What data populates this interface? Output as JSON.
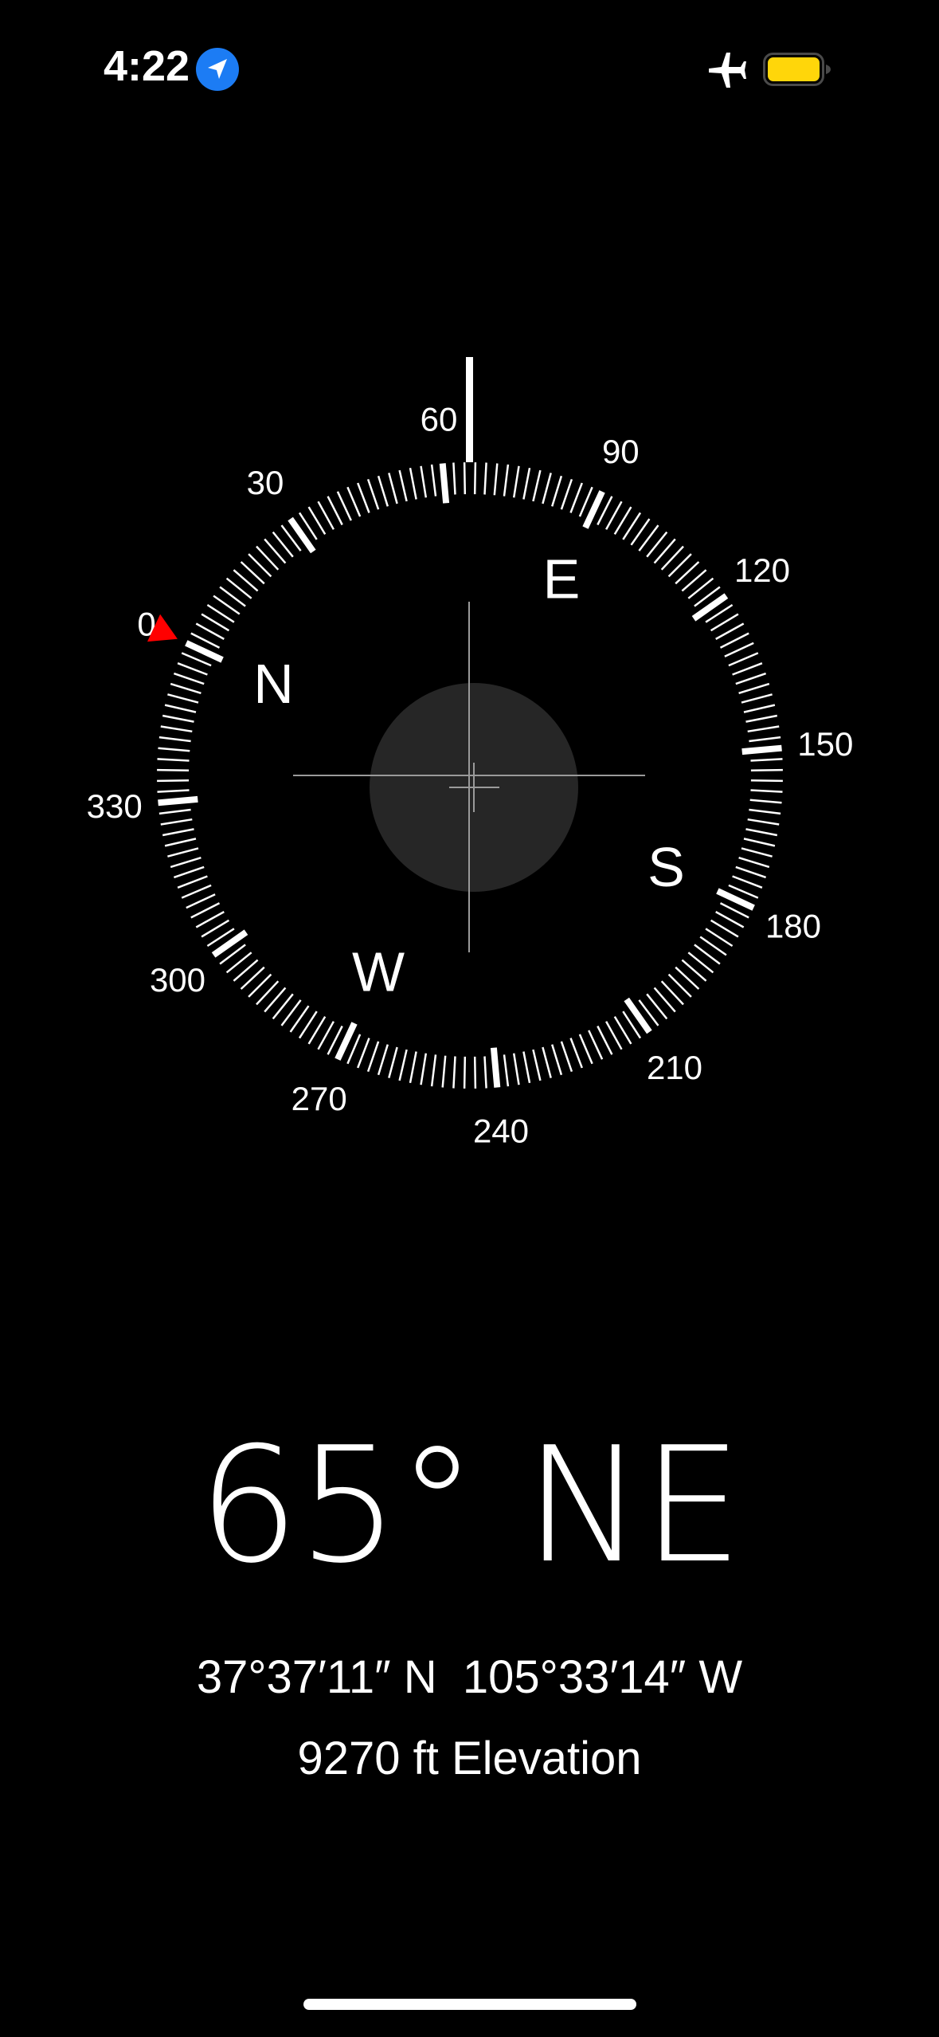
{
  "status_bar": {
    "time": "4:22",
    "location_icon": "location-arrow-icon",
    "airplane_icon": "airplane-icon",
    "battery_icon": "battery-icon",
    "battery_color": "#FFD60A",
    "location_color": "#1C7CF4"
  },
  "compass": {
    "heading_degrees": 65,
    "degree_labels": [
      "0",
      "30",
      "60",
      "90",
      "120",
      "150",
      "180",
      "210",
      "240",
      "270",
      "300",
      "330"
    ],
    "cardinals": {
      "N": "N",
      "E": "E",
      "S": "S",
      "W": "W"
    },
    "marker_color": "#FF0000"
  },
  "readout": {
    "heading": "65° NE",
    "coordinates": "37°37′11″ N  105°33′14″ W",
    "elevation": "9270 ft Elevation"
  }
}
